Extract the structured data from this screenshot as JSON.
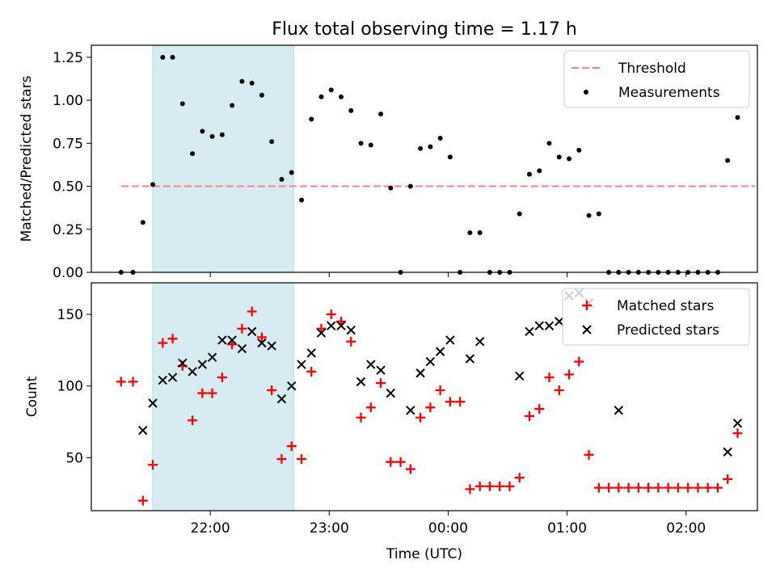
{
  "chart_data": {
    "title": "Flux total observing time = 1.17 h",
    "xlabel": "Time (UTC)",
    "x_ticks": [
      "22:00",
      "23:00",
      "00:00",
      "01:00",
      "02:00"
    ],
    "x_tick_values": [
      "22:00",
      "23:00",
      "00:00",
      "01:00",
      "02:00"
    ],
    "x_range": [
      "21:00",
      "02:36"
    ],
    "shaded_interval": [
      "21:31",
      "22:42"
    ],
    "colors": {
      "threshold": "#ff7f7f",
      "measurements": "#000000",
      "matched": "#ff0000",
      "predicted": "#000000",
      "shade": "#add8e6"
    },
    "panels": [
      {
        "type": "scatter",
        "ylabel": "Matched/Predicted stars",
        "ylim": [
          0,
          1.32
        ],
        "yticks": [
          "0.00",
          "0.25",
          "0.50",
          "0.75",
          "1.00",
          "1.25"
        ],
        "ytick_values": [
          0,
          0.25,
          0.5,
          0.75,
          1.0,
          1.25
        ],
        "legend_position": "upper right",
        "threshold": {
          "name": "Threshold",
          "value": 0.5,
          "x_range": [
            "21:15",
            "02:35"
          ],
          "style": "dashed"
        },
        "series": [
          {
            "name": "Measurements",
            "marker": "dot",
            "x": [
              "21:15",
              "21:21",
              "21:26",
              "21:31",
              "21:36",
              "21:41",
              "21:46",
              "21:51",
              "21:56",
              "22:01",
              "22:06",
              "22:11",
              "22:16",
              "22:21",
              "22:26",
              "22:31",
              "22:36",
              "22:41",
              "22:46",
              "22:51",
              "22:56",
              "23:01",
              "23:06",
              "23:11",
              "23:16",
              "23:21",
              "23:26",
              "23:31",
              "23:36",
              "23:41",
              "23:46",
              "23:51",
              "23:56",
              "00:01",
              "00:06",
              "00:11",
              "00:16",
              "00:21",
              "00:26",
              "00:31",
              "00:36",
              "00:41",
              "00:46",
              "00:51",
              "00:56",
              "01:01",
              "01:06",
              "01:11",
              "01:16",
              "01:21",
              "01:26",
              "01:31",
              "01:36",
              "01:41",
              "01:46",
              "01:51",
              "01:56",
              "02:01",
              "02:06",
              "02:11",
              "02:16",
              "02:21",
              "02:26"
            ],
            "y": [
              0,
              0,
              0.29,
              0.51,
              1.25,
              1.25,
              0.98,
              0.69,
              0.82,
              0.79,
              0.8,
              0.97,
              1.11,
              1.1,
              1.03,
              0.76,
              0.54,
              0.58,
              0.42,
              0.89,
              1.02,
              1.06,
              1.02,
              0.94,
              0.75,
              0.74,
              0.92,
              0.49,
              0,
              0.5,
              0.72,
              0.73,
              0.78,
              0.67,
              0,
              0.23,
              0.23,
              0,
              0,
              0,
              0.34,
              0.57,
              0.59,
              0.75,
              0.67,
              0.66,
              0.71,
              0.33,
              0.34,
              0,
              0,
              0,
              0,
              0,
              0,
              0,
              0,
              0,
              0,
              0,
              0,
              0.65,
              0.9
            ]
          }
        ]
      },
      {
        "type": "scatter",
        "ylabel": "Count",
        "ylim": [
          13,
          172
        ],
        "yticks": [
          "50",
          "100",
          "150"
        ],
        "ytick_values": [
          50,
          100,
          150
        ],
        "legend_position": "upper right",
        "series": [
          {
            "name": "Matched stars",
            "marker": "plus",
            "x": [
              "21:15",
              "21:21",
              "21:26",
              "21:31",
              "21:36",
              "21:41",
              "21:46",
              "21:51",
              "21:56",
              "22:01",
              "22:06",
              "22:11",
              "22:16",
              "22:21",
              "22:26",
              "22:31",
              "22:36",
              "22:41",
              "22:46",
              "22:51",
              "22:56",
              "23:01",
              "23:06",
              "23:11",
              "23:16",
              "23:21",
              "23:26",
              "23:31",
              "23:36",
              "23:41",
              "23:46",
              "23:51",
              "23:56",
              "00:01",
              "00:06",
              "00:11",
              "00:16",
              "00:21",
              "00:26",
              "00:31",
              "00:36",
              "00:41",
              "00:46",
              "00:51",
              "00:56",
              "01:01",
              "01:06",
              "01:11",
              "01:16",
              "01:21",
              "01:26",
              "01:31",
              "01:36",
              "01:41",
              "01:46",
              "01:51",
              "01:56",
              "02:01",
              "02:06",
              "02:11",
              "02:16",
              "02:21",
              "02:26"
            ],
            "y": [
              103,
              103,
              20,
              45,
              130,
              133,
              114,
              76,
              95,
              95,
              106,
              129,
              140,
              152,
              134,
              97,
              49,
              58,
              49,
              110,
              140,
              150,
              145,
              131,
              78,
              85,
              102,
              47,
              47,
              42,
              78,
              85,
              97,
              89,
              89,
              28,
              30,
              30,
              30,
              30,
              36,
              79,
              84,
              106,
              97,
              108,
              117,
              52,
              29,
              29,
              29,
              29,
              29,
              29,
              29,
              29,
              29,
              29,
              29,
              29,
              29,
              35,
              67
            ]
          },
          {
            "name": "Predicted stars",
            "marker": "x",
            "x": [
              "21:26",
              "21:31",
              "21:36",
              "21:41",
              "21:46",
              "21:51",
              "21:56",
              "22:01",
              "22:06",
              "22:11",
              "22:16",
              "22:21",
              "22:26",
              "22:31",
              "22:36",
              "22:41",
              "22:46",
              "22:51",
              "22:56",
              "23:01",
              "23:06",
              "23:11",
              "23:16",
              "23:21",
              "23:26",
              "23:31",
              "23:41",
              "23:46",
              "23:51",
              "23:56",
              "00:01",
              "00:11",
              "00:16",
              "00:36",
              "00:41",
              "00:46",
              "00:51",
              "00:56",
              "01:01",
              "01:06",
              "01:11",
              "01:26",
              "02:21",
              "02:26"
            ],
            "y": [
              69,
              88,
              104,
              106,
              116,
              110,
              115,
              120,
              132,
              132,
              126,
              138,
              130,
              128,
              91,
              100,
              115,
              123,
              137,
              142,
              142,
              139,
              103,
              115,
              111,
              95,
              83,
              109,
              117,
              124,
              132,
              119,
              131,
              107,
              138,
              142,
              142,
              145,
              163,
              165,
              158,
              83,
              54,
              74
            ]
          }
        ]
      }
    ]
  }
}
